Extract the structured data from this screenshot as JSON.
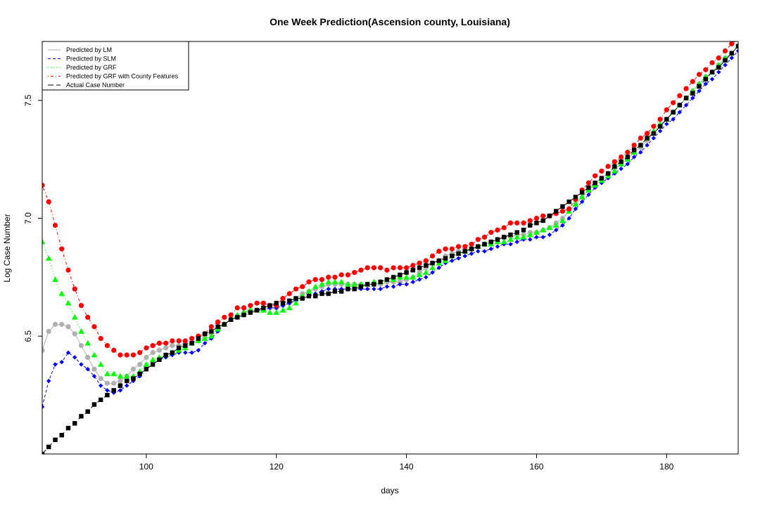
{
  "chart_data": {
    "type": "scatter",
    "title": "One Week Prediction(Ascension county, Louisiana)",
    "xlabel": "days",
    "ylabel": "Log Case Number",
    "xlim": [
      84,
      191
    ],
    "ylim": [
      6.0,
      7.75
    ],
    "x_ticks": [
      100,
      120,
      140,
      160,
      180
    ],
    "y_ticks": [
      6.5,
      7.0,
      7.5
    ],
    "legend_position": "top-left",
    "x": [
      84,
      85,
      86,
      87,
      88,
      89,
      90,
      91,
      92,
      93,
      94,
      95,
      96,
      97,
      98,
      99,
      100,
      101,
      102,
      103,
      104,
      105,
      106,
      107,
      108,
      109,
      110,
      111,
      112,
      113,
      114,
      115,
      116,
      117,
      118,
      119,
      120,
      121,
      122,
      123,
      124,
      125,
      126,
      127,
      128,
      129,
      130,
      131,
      132,
      133,
      134,
      135,
      136,
      137,
      138,
      139,
      140,
      141,
      142,
      143,
      144,
      145,
      146,
      147,
      148,
      149,
      150,
      151,
      152,
      153,
      154,
      155,
      156,
      157,
      158,
      159,
      160,
      161,
      162,
      163,
      164,
      165,
      166,
      167,
      168,
      169,
      170,
      171,
      172,
      173,
      174,
      175,
      176,
      177,
      178,
      179,
      180,
      181,
      182,
      183,
      184,
      185,
      186,
      187,
      188,
      189,
      190,
      191
    ],
    "series": [
      {
        "name": "Predicted by LM",
        "color": "#b0b0b0",
        "line": "solid",
        "marker": "circle",
        "values": [
          6.44,
          6.52,
          6.55,
          6.55,
          6.54,
          6.51,
          6.46,
          6.41,
          6.36,
          6.32,
          6.3,
          6.3,
          6.31,
          6.33,
          6.36,
          6.38,
          6.41,
          6.43,
          6.44,
          6.45,
          6.46,
          6.46,
          6.47,
          6.47,
          6.48,
          6.5,
          6.51,
          6.53,
          6.55,
          6.57,
          6.58,
          6.6,
          6.61,
          6.61,
          6.61,
          6.62,
          6.62,
          6.63,
          6.64,
          6.66,
          6.68,
          6.69,
          6.7,
          6.71,
          6.72,
          6.72,
          6.72,
          6.72,
          6.72,
          6.72,
          6.72,
          6.72,
          6.72,
          6.73,
          6.73,
          6.73,
          6.74,
          6.75,
          6.77,
          6.79,
          6.81,
          6.82,
          6.84,
          6.85,
          6.86,
          6.87,
          6.87,
          6.88,
          6.89,
          6.9,
          6.91,
          6.92,
          6.92,
          6.93,
          6.93,
          6.94,
          6.94,
          6.95,
          6.96,
          6.98,
          7.0,
          7.03,
          7.06,
          7.09,
          7.12,
          7.15,
          7.17,
          7.19,
          7.21,
          7.23,
          7.25,
          7.28,
          7.3,
          7.33,
          7.36,
          7.39,
          7.42,
          7.45,
          7.48,
          7.51,
          7.54,
          7.57,
          7.6,
          7.62,
          7.65,
          7.68,
          7.7,
          7.73
        ]
      },
      {
        "name": "Predicted by SLM",
        "color": "#0000ff",
        "line": "dashed",
        "marker": "diamond",
        "values": [
          6.2,
          6.31,
          6.38,
          6.39,
          6.43,
          6.41,
          6.38,
          6.36,
          6.33,
          6.29,
          6.27,
          6.26,
          6.27,
          6.29,
          6.31,
          6.33,
          6.36,
          6.38,
          6.4,
          6.41,
          6.42,
          6.43,
          6.43,
          6.43,
          6.44,
          6.47,
          6.49,
          6.52,
          6.55,
          6.57,
          6.58,
          6.59,
          6.6,
          6.61,
          6.61,
          6.62,
          6.62,
          6.63,
          6.64,
          6.65,
          6.66,
          6.67,
          6.68,
          6.69,
          6.7,
          6.7,
          6.7,
          6.7,
          6.7,
          6.7,
          6.7,
          6.7,
          6.7,
          6.71,
          6.71,
          6.72,
          6.72,
          6.73,
          6.74,
          6.75,
          6.77,
          6.79,
          6.81,
          6.82,
          6.83,
          6.84,
          6.85,
          6.86,
          6.86,
          6.87,
          6.88,
          6.89,
          6.89,
          6.9,
          6.91,
          6.91,
          6.92,
          6.92,
          6.93,
          6.95,
          6.97,
          7.0,
          7.04,
          7.07,
          7.1,
          7.13,
          7.15,
          7.17,
          7.19,
          7.21,
          7.23,
          7.26,
          7.28,
          7.31,
          7.34,
          7.37,
          7.4,
          7.42,
          7.45,
          7.48,
          7.51,
          7.54,
          7.57,
          7.59,
          7.62,
          7.65,
          7.68,
          7.71
        ]
      },
      {
        "name": "Predicted by GRF",
        "color": "#00ff00",
        "line": "dotted",
        "marker": "triangle",
        "values": [
          6.9,
          6.83,
          6.74,
          6.68,
          6.64,
          6.58,
          6.52,
          6.47,
          6.42,
          6.38,
          6.34,
          6.34,
          6.33,
          6.33,
          6.33,
          6.35,
          6.38,
          6.4,
          6.41,
          6.42,
          6.43,
          6.44,
          6.45,
          6.47,
          6.48,
          6.49,
          6.5,
          6.53,
          6.55,
          6.57,
          6.59,
          6.6,
          6.61,
          6.61,
          6.61,
          6.6,
          6.6,
          6.61,
          6.62,
          6.64,
          6.67,
          6.69,
          6.71,
          6.72,
          6.73,
          6.73,
          6.73,
          6.72,
          6.72,
          6.72,
          6.72,
          6.73,
          6.73,
          6.74,
          6.74,
          6.75,
          6.75,
          6.75,
          6.76,
          6.77,
          6.79,
          6.81,
          6.82,
          6.84,
          6.85,
          6.86,
          6.87,
          6.88,
          6.89,
          6.89,
          6.9,
          6.9,
          6.91,
          6.92,
          6.92,
          6.93,
          6.94,
          6.95,
          6.96,
          6.97,
          6.99,
          7.03,
          7.06,
          7.09,
          7.12,
          7.14,
          7.16,
          7.18,
          7.2,
          7.23,
          7.25,
          7.28,
          7.31,
          7.34,
          7.37,
          7.4,
          7.42,
          7.45,
          7.48,
          7.51,
          7.54,
          7.57,
          7.6,
          7.62,
          7.65,
          7.68,
          7.7,
          7.73
        ]
      },
      {
        "name": "Predicted by GRF with County Features",
        "color": "#ff0000",
        "line": "dotdash",
        "marker": "circle",
        "values": [
          7.14,
          7.07,
          6.97,
          6.87,
          6.78,
          6.7,
          6.63,
          6.58,
          6.54,
          6.49,
          6.46,
          6.44,
          6.42,
          6.42,
          6.42,
          6.43,
          6.45,
          6.46,
          6.47,
          6.47,
          6.48,
          6.48,
          6.48,
          6.49,
          6.5,
          6.51,
          6.54,
          6.56,
          6.58,
          6.59,
          6.62,
          6.62,
          6.63,
          6.64,
          6.64,
          6.63,
          6.63,
          6.66,
          6.68,
          6.7,
          6.71,
          6.73,
          6.74,
          6.74,
          6.75,
          6.75,
          6.76,
          6.76,
          6.77,
          6.78,
          6.79,
          6.79,
          6.79,
          6.78,
          6.79,
          6.79,
          6.79,
          6.8,
          6.81,
          6.82,
          6.84,
          6.86,
          6.87,
          6.87,
          6.88,
          6.88,
          6.89,
          6.91,
          6.92,
          6.94,
          6.95,
          6.96,
          6.98,
          6.98,
          6.98,
          6.99,
          7.0,
          7.01,
          7.01,
          7.02,
          7.03,
          7.04,
          7.08,
          7.12,
          7.15,
          7.18,
          7.2,
          7.22,
          7.24,
          7.26,
          7.28,
          7.31,
          7.34,
          7.36,
          7.39,
          7.42,
          7.46,
          7.49,
          7.52,
          7.55,
          7.58,
          7.61,
          7.63,
          7.66,
          7.68,
          7.71,
          7.74,
          7.76
        ]
      },
      {
        "name": "Actual Case Number",
        "color": "#000000",
        "line": "longdash",
        "marker": "square",
        "values": [
          6.0,
          6.03,
          6.06,
          6.08,
          6.11,
          6.13,
          6.16,
          6.18,
          6.21,
          6.23,
          6.25,
          6.27,
          6.29,
          6.31,
          6.32,
          6.34,
          6.36,
          6.38,
          6.4,
          6.42,
          6.43,
          6.45,
          6.46,
          6.47,
          6.49,
          6.51,
          6.52,
          6.54,
          6.55,
          6.57,
          6.58,
          6.59,
          6.6,
          6.61,
          6.62,
          6.63,
          6.64,
          6.64,
          6.65,
          6.66,
          6.66,
          6.67,
          6.67,
          6.68,
          6.68,
          6.69,
          6.69,
          6.7,
          6.7,
          6.71,
          6.72,
          6.72,
          6.73,
          6.74,
          6.75,
          6.76,
          6.77,
          6.78,
          6.79,
          6.8,
          6.81,
          6.82,
          6.83,
          6.84,
          6.85,
          6.86,
          6.87,
          6.88,
          6.89,
          6.9,
          6.91,
          6.92,
          6.93,
          6.94,
          6.95,
          6.97,
          6.98,
          6.99,
          7.01,
          7.03,
          7.05,
          7.07,
          7.09,
          7.11,
          7.13,
          7.15,
          7.17,
          7.19,
          7.22,
          7.24,
          7.26,
          7.29,
          7.31,
          7.34,
          7.36,
          7.39,
          7.42,
          7.45,
          7.48,
          7.51,
          7.53,
          7.56,
          7.59,
          7.62,
          7.64,
          7.67,
          7.7,
          7.73
        ]
      }
    ]
  }
}
